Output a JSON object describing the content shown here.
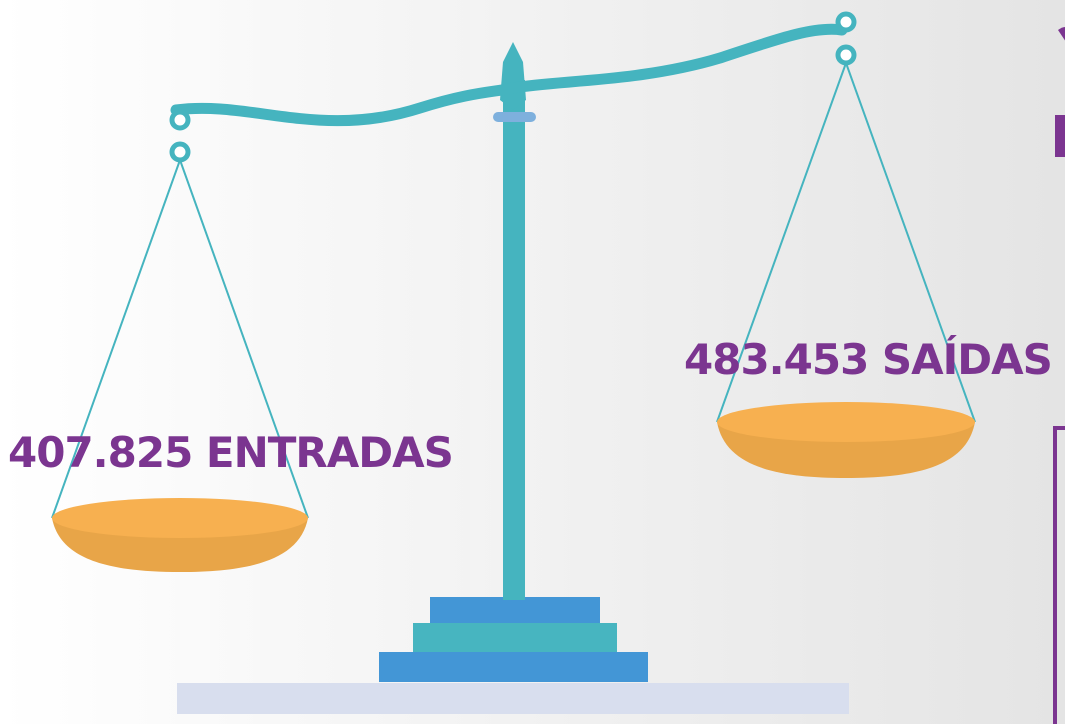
{
  "labels": {
    "left": "407.825 ENTRADAS",
    "right": "483.453 SAÍDAS"
  }
}
